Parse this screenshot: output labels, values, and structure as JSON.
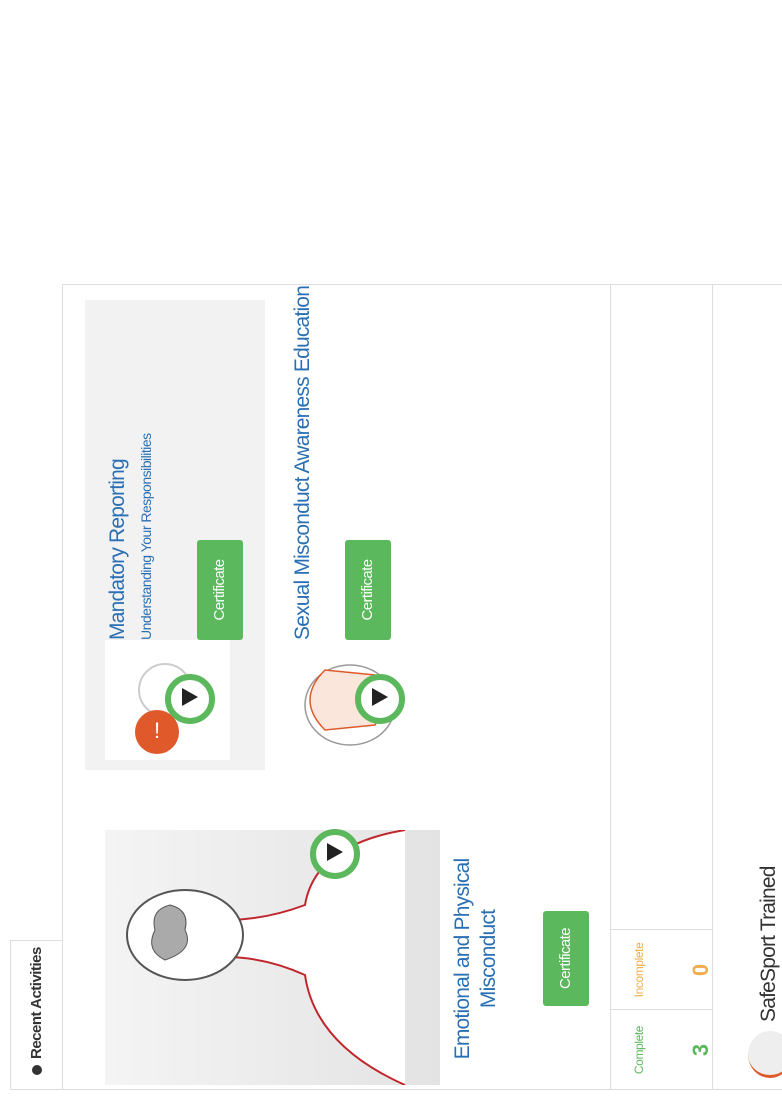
{
  "tab": {
    "title": "Recent Activities"
  },
  "activities": [
    {
      "title": "Emotional and Physical Misconduct",
      "button": "Certificate"
    },
    {
      "title": "Mandatory Reporting",
      "subtitle": "Understanding Your Responsibilities",
      "button": "Certificate"
    },
    {
      "title": "Sexual Misconduct Awareness Education",
      "button": "Certificate"
    }
  ],
  "stats": [
    {
      "label": "Complete",
      "value": 3
    },
    {
      "label": "Incomplete",
      "value": 0
    }
  ],
  "section": {
    "title": "SafeSport Trained"
  }
}
